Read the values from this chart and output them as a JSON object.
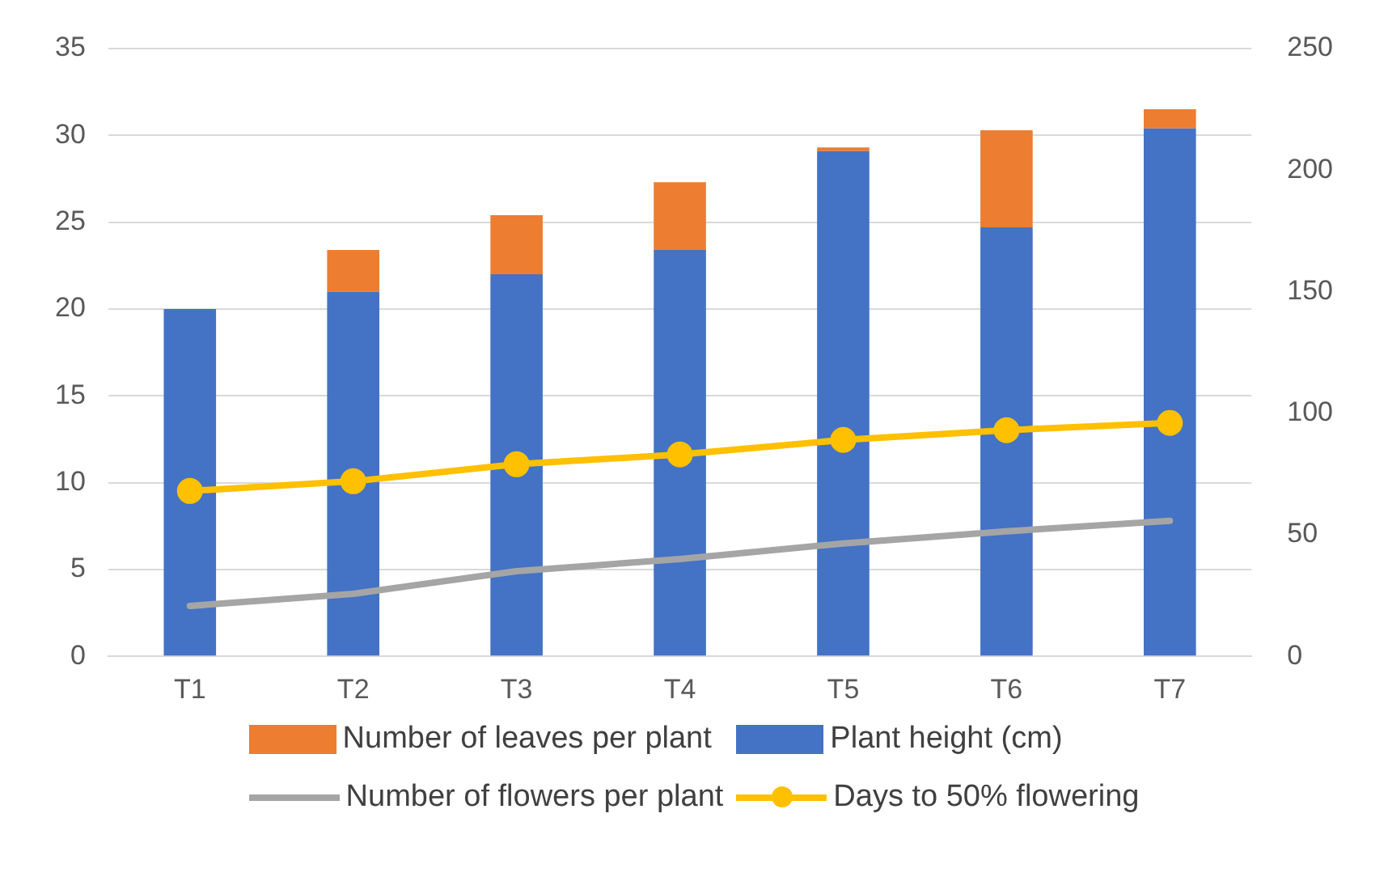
{
  "chart_data": {
    "type": "bar",
    "stacked": true,
    "categories": [
      "T1",
      "T2",
      "T3",
      "T4",
      "T5",
      "T6",
      "T7"
    ],
    "series": [
      {
        "name": "Plant height (cm)",
        "color": "#4472c4",
        "values": [
          20,
          21,
          22,
          23.4,
          29.1,
          24.7,
          30.4
        ]
      },
      {
        "name": "Number of leaves per plant",
        "color": "#ed7d31",
        "values": [
          0,
          2.4,
          3.4,
          3.9,
          0.2,
          5.6,
          1.1
        ]
      },
      {
        "name": "Number of flowers per plant",
        "type": "line",
        "color": "#a5a5a5",
        "marker": "none",
        "values": [
          2.9,
          3.6,
          4.9,
          5.6,
          6.5,
          7.2,
          7.8
        ]
      },
      {
        "name": "Days to 50% flowering",
        "type": "line",
        "axis": "y2",
        "color": "#ffc000",
        "marker": "circle",
        "values": [
          68,
          72,
          79,
          83,
          89,
          93,
          96
        ]
      }
    ],
    "ylim": [
      0,
      35
    ],
    "yticks": [
      0,
      5,
      10,
      15,
      20,
      25,
      30,
      35
    ],
    "y2lim": [
      0,
      250
    ],
    "y2ticks": [
      0,
      50,
      100,
      150,
      200,
      250
    ],
    "grid": "y",
    "legend": "bottom"
  }
}
